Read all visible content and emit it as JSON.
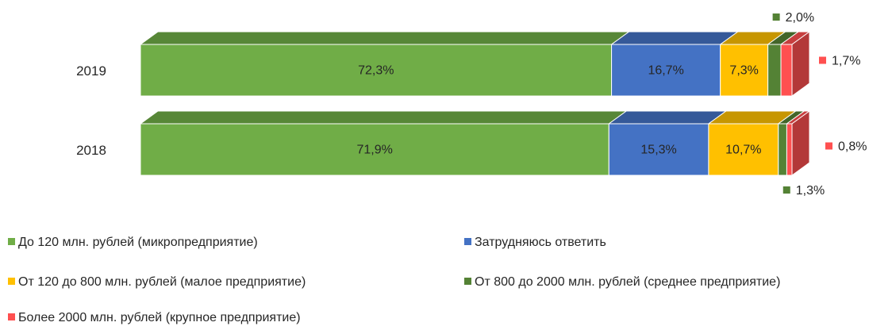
{
  "chart_data": {
    "type": "stacked-bar-3d",
    "categories": [
      "2019",
      "2018"
    ],
    "series": [
      {
        "name": "До 120 млн. рублей (микропредприятие)",
        "color": "#70ad47",
        "values": [
          72.3,
          71.9
        ],
        "value_labels": [
          "72,3%",
          "71,9%"
        ]
      },
      {
        "name": "Затрудняюсь ответить",
        "color": "#4472c4",
        "values": [
          16.7,
          15.3
        ],
        "value_labels": [
          "16,7%",
          "15,3%"
        ]
      },
      {
        "name": "От 120 до 800 млн. рублей (малое предприятие)",
        "color": "#ffc000",
        "values": [
          7.3,
          10.7
        ],
        "value_labels": [
          "7,3%",
          "10,7%"
        ]
      },
      {
        "name": "От 800 до 2000 млн. рублей (среднее предприятие)",
        "color": "#548235",
        "values": [
          2.0,
          1.3
        ],
        "value_labels": [
          "2,0%",
          "1,3%"
        ]
      },
      {
        "name": "Более 2000 млн. рублей (крупное предприятие)",
        "color": "#ff5050",
        "values": [
          1.7,
          0.8
        ],
        "value_labels": [
          "1,7%",
          "0,8%"
        ]
      }
    ]
  }
}
